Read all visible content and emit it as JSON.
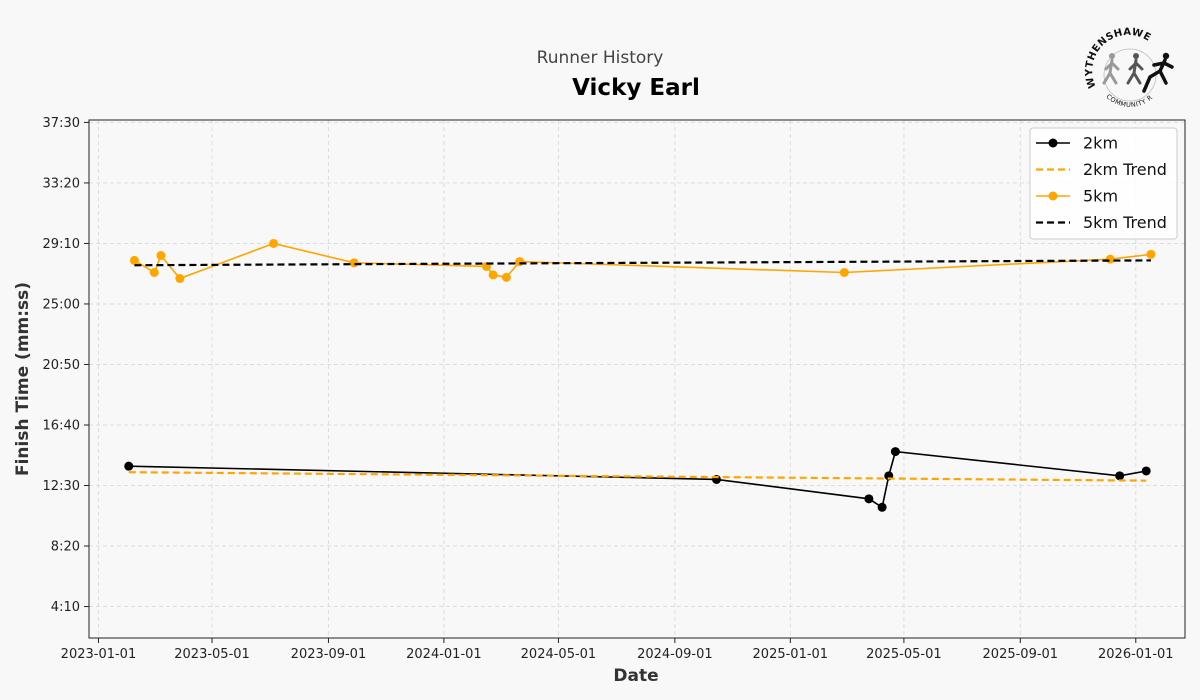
{
  "header": {
    "subtitle": "Runner History",
    "title": "Vicky Earl"
  },
  "logo": {
    "text_top": "WYTHENSHAWE",
    "text_bottom": "COMMUNITY RUN"
  },
  "chart_data": {
    "type": "line",
    "xlabel": "Date",
    "ylabel": "Finish Time (mm:ss)",
    "x_ticks": [
      "2023-01-01",
      "2023-05-01",
      "2023-09-01",
      "2024-01-01",
      "2024-05-01",
      "2024-09-01",
      "2025-01-01",
      "2025-05-01",
      "2025-09-01",
      "2026-01-01"
    ],
    "y_ticks": [
      "4:10",
      "8:20",
      "12:30",
      "16:40",
      "20:50",
      "25:00",
      "29:10",
      "33:20",
      "37:30"
    ],
    "y_ticks_seconds": [
      250,
      500,
      750,
      1000,
      1250,
      1500,
      1750,
      2000,
      2250
    ],
    "xlim": [
      "2022-12-22",
      "2026-02-22"
    ],
    "ylim_seconds": [
      120,
      2260
    ],
    "grid": true,
    "legend_position": "top-right",
    "series": [
      {
        "name": "2km",
        "color": "#000000",
        "style": "line-marker",
        "points": [
          {
            "x": "2023-02-02",
            "y": "13:50"
          },
          {
            "x": "2024-10-15",
            "y": "12:55"
          },
          {
            "x": "2025-03-25",
            "y": "11:35"
          },
          {
            "x": "2025-04-08",
            "y": "11:00"
          },
          {
            "x": "2025-04-15",
            "y": "13:10"
          },
          {
            "x": "2025-04-22",
            "y": "14:50"
          },
          {
            "x": "2025-12-15",
            "y": "13:10"
          },
          {
            "x": "2026-01-12",
            "y": "13:30"
          }
        ]
      },
      {
        "name": "2km Trend",
        "color": "#FFA500",
        "style": "dashed",
        "points": [
          {
            "x": "2023-02-02",
            "y": "13:25"
          },
          {
            "x": "2026-01-12",
            "y": "12:50"
          }
        ]
      },
      {
        "name": "5km",
        "color": "#FFA500",
        "style": "line-marker",
        "points": [
          {
            "x": "2023-02-08",
            "y": "28:00"
          },
          {
            "x": "2023-03-01",
            "y": "27:10"
          },
          {
            "x": "2023-03-08",
            "y": "28:20"
          },
          {
            "x": "2023-03-28",
            "y": "26:45"
          },
          {
            "x": "2023-07-05",
            "y": "29:10"
          },
          {
            "x": "2023-09-28",
            "y": "27:50"
          },
          {
            "x": "2024-02-15",
            "y": "27:35"
          },
          {
            "x": "2024-02-22",
            "y": "27:00"
          },
          {
            "x": "2024-03-07",
            "y": "26:50"
          },
          {
            "x": "2024-03-21",
            "y": "27:55"
          },
          {
            "x": "2025-02-27",
            "y": "27:10"
          },
          {
            "x": "2025-12-05",
            "y": "28:05"
          },
          {
            "x": "2026-01-17",
            "y": "28:25"
          }
        ]
      },
      {
        "name": "5km Trend",
        "color": "#000000",
        "style": "dashed",
        "points": [
          {
            "x": "2023-02-08",
            "y": "27:40"
          },
          {
            "x": "2026-01-17",
            "y": "28:00"
          }
        ]
      }
    ]
  }
}
